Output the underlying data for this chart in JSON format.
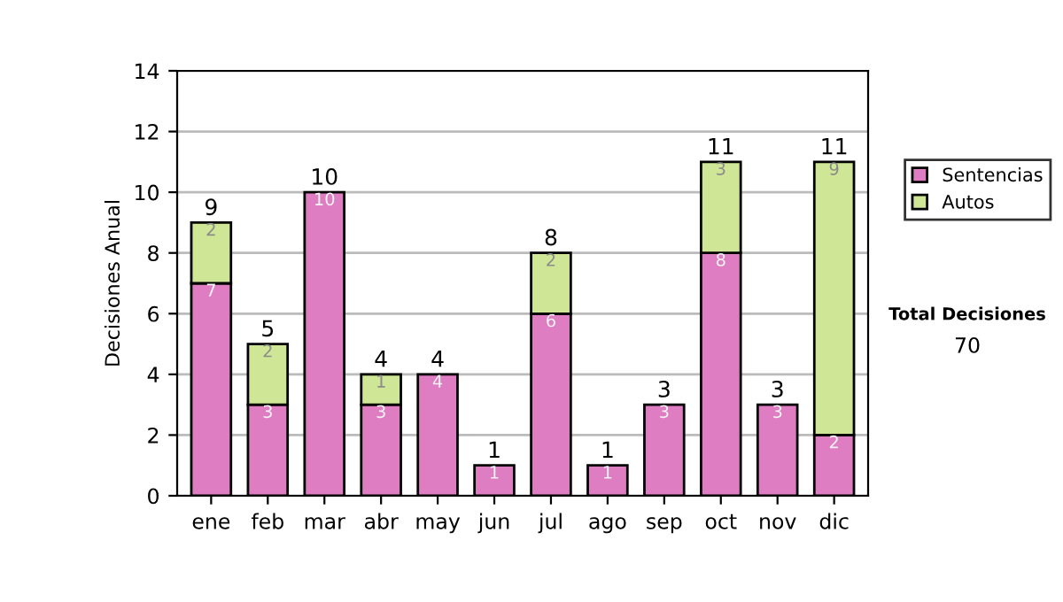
{
  "chart_data": {
    "type": "bar",
    "stacked": true,
    "ylabel": "Decisiones Anual",
    "categories": [
      "ene",
      "feb",
      "mar",
      "abr",
      "may",
      "jun",
      "jul",
      "ago",
      "sep",
      "oct",
      "nov",
      "dic"
    ],
    "series": [
      {
        "name": "Sentencias",
        "color": "#df7dc2",
        "values": [
          7,
          3,
          10,
          3,
          4,
          1,
          6,
          1,
          3,
          8,
          3,
          2
        ]
      },
      {
        "name": "Autos",
        "color": "#cfe697",
        "values": [
          2,
          2,
          null,
          1,
          null,
          null,
          2,
          null,
          null,
          3,
          null,
          9
        ]
      }
    ],
    "data_labels": true,
    "totals": [
      "9",
      "5",
      "10",
      "4",
      "4",
      "1",
      "8",
      "1",
      "3",
      "11",
      "3",
      "11"
    ],
    "ylim": [
      0,
      14
    ],
    "yticks": [
      0,
      2,
      4,
      6,
      8,
      10,
      12,
      14
    ],
    "grid": "y",
    "legend": "right",
    "annotations": [
      "Total Decisiones",
      "70"
    ]
  }
}
